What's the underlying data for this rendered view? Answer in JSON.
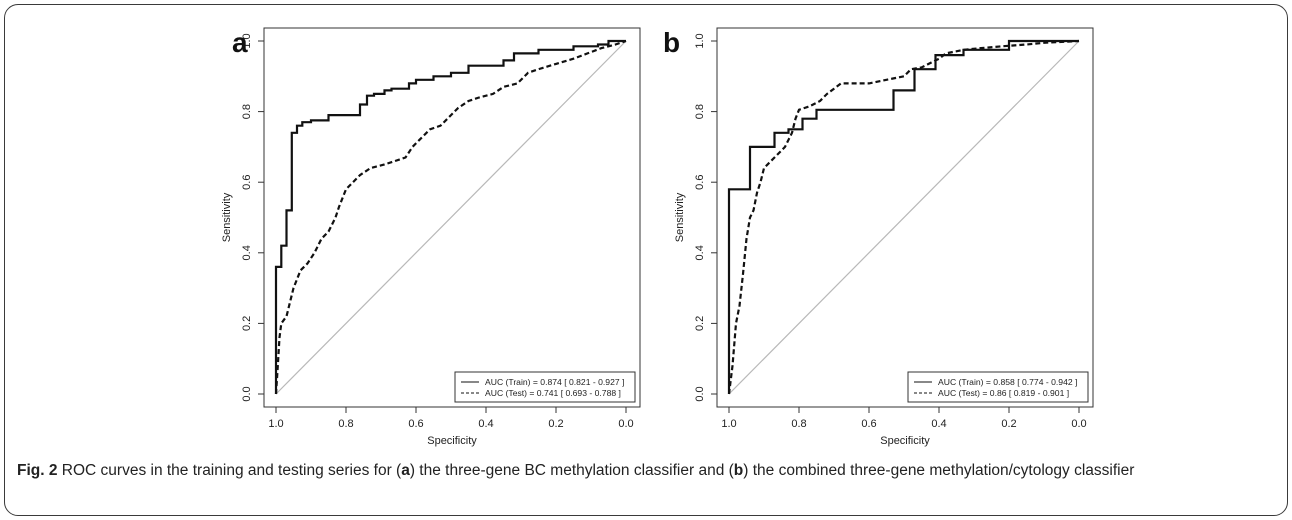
{
  "chart_data": [
    {
      "panel_label": "a",
      "type": "line",
      "xlabel": "Specificity",
      "ylabel": "Sensitivity",
      "xlim": [
        1.0,
        0.0
      ],
      "ylim": [
        0.0,
        1.0
      ],
      "x_ticks": [
        "1.0",
        "0.8",
        "0.6",
        "0.4",
        "0.2",
        "0.0"
      ],
      "y_ticks": [
        "0.0",
        "0.2",
        "0.4",
        "0.6",
        "0.8",
        "1.0"
      ],
      "legend_position": "bottom-right",
      "reference_line": "diagonal",
      "series": [
        {
          "name": "AUC (Train) = 0.874 [ 0.821 - 0.927 ]",
          "style": "solid",
          "points": [
            [
              1.0,
              0.0
            ],
            [
              1.0,
              0.36
            ],
            [
              0.985,
              0.36
            ],
            [
              0.985,
              0.42
            ],
            [
              0.97,
              0.42
            ],
            [
              0.97,
              0.52
            ],
            [
              0.955,
              0.52
            ],
            [
              0.955,
              0.74
            ],
            [
              0.94,
              0.74
            ],
            [
              0.94,
              0.76
            ],
            [
              0.925,
              0.76
            ],
            [
              0.925,
              0.77
            ],
            [
              0.9,
              0.77
            ],
            [
              0.9,
              0.775
            ],
            [
              0.85,
              0.775
            ],
            [
              0.85,
              0.79
            ],
            [
              0.76,
              0.79
            ],
            [
              0.76,
              0.82
            ],
            [
              0.74,
              0.82
            ],
            [
              0.74,
              0.845
            ],
            [
              0.72,
              0.845
            ],
            [
              0.72,
              0.85
            ],
            [
              0.69,
              0.85
            ],
            [
              0.69,
              0.86
            ],
            [
              0.67,
              0.86
            ],
            [
              0.67,
              0.865
            ],
            [
              0.62,
              0.865
            ],
            [
              0.62,
              0.88
            ],
            [
              0.6,
              0.88
            ],
            [
              0.6,
              0.89
            ],
            [
              0.55,
              0.89
            ],
            [
              0.55,
              0.9
            ],
            [
              0.5,
              0.9
            ],
            [
              0.5,
              0.91
            ],
            [
              0.45,
              0.91
            ],
            [
              0.45,
              0.93
            ],
            [
              0.35,
              0.93
            ],
            [
              0.35,
              0.945
            ],
            [
              0.32,
              0.945
            ],
            [
              0.32,
              0.965
            ],
            [
              0.25,
              0.965
            ],
            [
              0.25,
              0.975
            ],
            [
              0.15,
              0.975
            ],
            [
              0.15,
              0.985
            ],
            [
              0.08,
              0.985
            ],
            [
              0.08,
              0.99
            ],
            [
              0.05,
              0.99
            ],
            [
              0.05,
              1.0
            ],
            [
              0.0,
              1.0
            ]
          ]
        },
        {
          "name": "AUC (Test) = 0.741 [ 0.693 - 0.788 ]",
          "style": "dashed",
          "points": [
            [
              1.0,
              0.0
            ],
            [
              0.995,
              0.08
            ],
            [
              0.99,
              0.16
            ],
            [
              0.985,
              0.2
            ],
            [
              0.97,
              0.22
            ],
            [
              0.96,
              0.26
            ],
            [
              0.95,
              0.3
            ],
            [
              0.93,
              0.35
            ],
            [
              0.91,
              0.37
            ],
            [
              0.89,
              0.4
            ],
            [
              0.87,
              0.44
            ],
            [
              0.85,
              0.46
            ],
            [
              0.83,
              0.5
            ],
            [
              0.82,
              0.53
            ],
            [
              0.8,
              0.58
            ],
            [
              0.78,
              0.6
            ],
            [
              0.76,
              0.62
            ],
            [
              0.73,
              0.64
            ],
            [
              0.69,
              0.65
            ],
            [
              0.66,
              0.66
            ],
            [
              0.63,
              0.67
            ],
            [
              0.61,
              0.7
            ],
            [
              0.59,
              0.72
            ],
            [
              0.56,
              0.75
            ],
            [
              0.53,
              0.76
            ],
            [
              0.5,
              0.79
            ],
            [
              0.48,
              0.81
            ],
            [
              0.45,
              0.83
            ],
            [
              0.42,
              0.84
            ],
            [
              0.38,
              0.85
            ],
            [
              0.35,
              0.87
            ],
            [
              0.31,
              0.88
            ],
            [
              0.28,
              0.91
            ],
            [
              0.25,
              0.92
            ],
            [
              0.2,
              0.935
            ],
            [
              0.15,
              0.95
            ],
            [
              0.11,
              0.965
            ],
            [
              0.07,
              0.98
            ],
            [
              0.03,
              0.99
            ],
            [
              0.0,
              1.0
            ]
          ]
        }
      ]
    },
    {
      "panel_label": "b",
      "type": "line",
      "xlabel": "Specificity",
      "ylabel": "Sensitivity",
      "xlim": [
        1.0,
        0.0
      ],
      "ylim": [
        0.0,
        1.0
      ],
      "x_ticks": [
        "1.0",
        "0.8",
        "0.6",
        "0.4",
        "0.2",
        "0.0"
      ],
      "y_ticks": [
        "0.0",
        "0.2",
        "0.4",
        "0.6",
        "0.8",
        "1.0"
      ],
      "legend_position": "bottom-right",
      "reference_line": "diagonal",
      "series": [
        {
          "name": "AUC (Train) = 0.858 [ 0.774 - 0.942 ]",
          "style": "solid",
          "points": [
            [
              1.0,
              0.0
            ],
            [
              1.0,
              0.58
            ],
            [
              0.94,
              0.58
            ],
            [
              0.94,
              0.7
            ],
            [
              0.87,
              0.7
            ],
            [
              0.87,
              0.74
            ],
            [
              0.83,
              0.74
            ],
            [
              0.83,
              0.75
            ],
            [
              0.79,
              0.75
            ],
            [
              0.79,
              0.78
            ],
            [
              0.75,
              0.78
            ],
            [
              0.75,
              0.805
            ],
            [
              0.53,
              0.805
            ],
            [
              0.53,
              0.86
            ],
            [
              0.47,
              0.86
            ],
            [
              0.47,
              0.92
            ],
            [
              0.41,
              0.92
            ],
            [
              0.41,
              0.96
            ],
            [
              0.33,
              0.96
            ],
            [
              0.33,
              0.975
            ],
            [
              0.2,
              0.975
            ],
            [
              0.2,
              1.0
            ],
            [
              0.0,
              1.0
            ]
          ]
        },
        {
          "name": "AUC (Test) = 0.86 [ 0.819 - 0.901 ]",
          "style": "dashed",
          "points": [
            [
              1.0,
              0.0
            ],
            [
              0.99,
              0.08
            ],
            [
              0.98,
              0.2
            ],
            [
              0.97,
              0.25
            ],
            [
              0.96,
              0.34
            ],
            [
              0.95,
              0.44
            ],
            [
              0.94,
              0.5
            ],
            [
              0.93,
              0.52
            ],
            [
              0.92,
              0.57
            ],
            [
              0.91,
              0.6
            ],
            [
              0.9,
              0.64
            ],
            [
              0.88,
              0.66
            ],
            [
              0.86,
              0.68
            ],
            [
              0.84,
              0.7
            ],
            [
              0.83,
              0.72
            ],
            [
              0.82,
              0.74
            ],
            [
              0.81,
              0.78
            ],
            [
              0.8,
              0.805
            ],
            [
              0.77,
              0.815
            ],
            [
              0.74,
              0.83
            ],
            [
              0.72,
              0.85
            ],
            [
              0.7,
              0.865
            ],
            [
              0.68,
              0.88
            ],
            [
              0.6,
              0.88
            ],
            [
              0.55,
              0.89
            ],
            [
              0.5,
              0.9
            ],
            [
              0.48,
              0.92
            ],
            [
              0.45,
              0.925
            ],
            [
              0.42,
              0.94
            ],
            [
              0.4,
              0.95
            ],
            [
              0.38,
              0.965
            ],
            [
              0.33,
              0.975
            ],
            [
              0.28,
              0.98
            ],
            [
              0.22,
              0.985
            ],
            [
              0.15,
              0.99
            ],
            [
              0.1,
              0.995
            ],
            [
              0.0,
              1.0
            ]
          ]
        }
      ]
    }
  ],
  "caption": {
    "fig_label": "Fig. 2",
    "part1": " ROC curves in the training and testing series for (",
    "a": "a",
    "part2": ") the three-gene BC methylation classifier and (",
    "b": "b",
    "part3": ") the combined three-gene methylation/cytology classifier"
  },
  "colors": {
    "curve": "#111111",
    "diagonal": "#b8b8b8",
    "axis": "#333333"
  }
}
